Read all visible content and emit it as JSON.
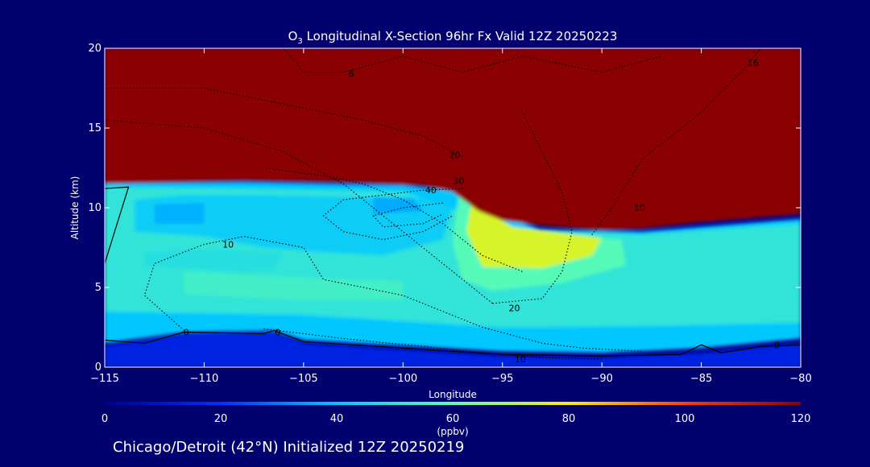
{
  "chart_data": {
    "type": "heatmap",
    "title_prefix": "O",
    "title_sub": "3",
    "title_rest": " Longitudinal X-Section 96hr  Fx Valid 12Z 20250223",
    "xlabel": "Longitude",
    "ylabel": "Altitude (km)",
    "xlim": [
      -115,
      -80
    ],
    "ylim": [
      0,
      20
    ],
    "x_ticks": [
      -115,
      -110,
      -105,
      -100,
      -95,
      -90,
      -85,
      -80
    ],
    "x_tick_labels": [
      "−115",
      "−110",
      "−105",
      "−100",
      "−95",
      "−90",
      "−85",
      "−80"
    ],
    "y_ticks": [
      0,
      5,
      10,
      15,
      20
    ],
    "y_tick_labels": [
      "0",
      "5",
      "10",
      "15",
      "20"
    ],
    "colorbar": {
      "min": 0,
      "max": 120,
      "unit": "(ppbv)",
      "ticks": [
        0,
        20,
        40,
        60,
        80,
        100,
        120
      ],
      "tick_labels": [
        "0",
        "20",
        "40",
        "60",
        "80",
        "100",
        "120"
      ],
      "colors": [
        "#00008f",
        "#0030ff",
        "#00c8ff",
        "#60ffb0",
        "#fff000",
        "#ff4000",
        "#8b0000"
      ]
    },
    "ozone_regions": [
      {
        "level": 15,
        "boundary": [
          [
            -115,
            0
          ],
          [
            -115,
            1.3
          ],
          [
            -111,
            2.1
          ],
          [
            -106.5,
            2.2
          ],
          [
            -105,
            1.5
          ],
          [
            -95,
            0.7
          ],
          [
            -90,
            0.6
          ],
          [
            -85,
            0.9
          ],
          [
            -80,
            1.5
          ],
          [
            -80,
            0
          ]
        ]
      },
      {
        "level": 40,
        "boundary": [
          [
            -115,
            1.5
          ],
          [
            -111,
            2.2
          ],
          [
            -106.5,
            2.3
          ],
          [
            -105,
            1.7
          ],
          [
            -95,
            1.0
          ],
          [
            -90,
            0.9
          ],
          [
            -85,
            1.2
          ],
          [
            -80,
            1.8
          ],
          [
            -80,
            9.3
          ],
          [
            -88,
            8.5
          ],
          [
            -93,
            8.6
          ],
          [
            -95,
            9.5
          ],
          [
            -97,
            11
          ],
          [
            -100,
            11.4
          ],
          [
            -108,
            11.6
          ],
          [
            -115,
            11.5
          ]
        ]
      },
      {
        "level": 50,
        "boundary": [
          [
            -115,
            3.5
          ],
          [
            -105,
            3.3
          ],
          [
            -95,
            2.5
          ],
          [
            -87,
            2.6
          ],
          [
            -80,
            2.8
          ],
          [
            -80,
            9
          ],
          [
            -88,
            8.3
          ],
          [
            -95,
            8.8
          ],
          [
            -100,
            11
          ],
          [
            -108,
            11.2
          ],
          [
            -115,
            11.3
          ]
        ]
      },
      {
        "level": 42,
        "boundary": [
          [
            -113.5,
            10.5
          ],
          [
            -111,
            10.8
          ],
          [
            -107,
            10.8
          ],
          [
            -103,
            10.7
          ],
          [
            -99,
            10.6
          ],
          [
            -97.5,
            10
          ],
          [
            -98,
            8
          ],
          [
            -101,
            7
          ],
          [
            -104,
            7.2
          ],
          [
            -107,
            7.5
          ],
          [
            -110,
            8.2
          ],
          [
            -113.5,
            8.5
          ]
        ]
      },
      {
        "level": 37,
        "boundary": [
          [
            -112.5,
            10.2
          ],
          [
            -110,
            10.3
          ],
          [
            -110,
            9
          ],
          [
            -112.5,
            9
          ]
        ]
      },
      {
        "level": 36,
        "boundary": [
          [
            -101.5,
            10.7
          ],
          [
            -99.5,
            10.6
          ],
          [
            -99,
            9.8
          ],
          [
            -101.5,
            9.6
          ]
        ]
      },
      {
        "level": 58,
        "boundary": [
          [
            -97.2,
            10.8
          ],
          [
            -96,
            9.8
          ],
          [
            -95.5,
            9
          ],
          [
            -94,
            8.6
          ],
          [
            -91,
            8.2
          ],
          [
            -89,
            8
          ],
          [
            -88.8,
            6.4
          ],
          [
            -92,
            5.3
          ],
          [
            -95.5,
            4.8
          ],
          [
            -97,
            5.5
          ],
          [
            -97.5,
            7.8
          ]
        ]
      },
      {
        "level": 75,
        "boundary": [
          [
            -96.5,
            10.7
          ],
          [
            -95.8,
            9.8
          ],
          [
            -94.5,
            8.8
          ],
          [
            -92,
            8.4
          ],
          [
            -90,
            8.1
          ],
          [
            -90.5,
            7
          ],
          [
            -93,
            6.2
          ],
          [
            -96,
            6.3
          ],
          [
            -96.8,
            8.5
          ]
        ]
      },
      {
        "level": 54,
        "boundary": [
          [
            -111,
            6
          ],
          [
            -105,
            5.6
          ],
          [
            -100,
            5.4
          ],
          [
            -100,
            4.2
          ],
          [
            -105,
            4.2
          ],
          [
            -111,
            4.6
          ]
        ]
      },
      {
        "level": 48,
        "boundary": [
          [
            -113,
            6.4
          ],
          [
            -108,
            6
          ],
          [
            -106.5,
            6.2
          ],
          [
            -106,
            7.2
          ],
          [
            -110,
            7.4
          ],
          [
            -113,
            7.2
          ]
        ]
      },
      {
        "level": 120,
        "boundary": [
          [
            -115,
            11.5
          ],
          [
            -108,
            11.7
          ],
          [
            -103,
            11.6
          ],
          [
            -99,
            11.4
          ],
          [
            -97.5,
            11
          ],
          [
            -96.2,
            9.8
          ],
          [
            -95,
            9.2
          ],
          [
            -93,
            8.9
          ],
          [
            -90,
            8.6
          ],
          [
            -88,
            8.7
          ],
          [
            -85,
            9.1
          ],
          [
            -80,
            9.6
          ],
          [
            -80,
            20
          ],
          [
            -115,
            20
          ]
        ]
      }
    ],
    "contours": [
      {
        "label": "0",
        "points": [
          [
            -115,
            1.7
          ],
          [
            -113,
            1.5
          ],
          [
            -111,
            2.2
          ],
          [
            -107,
            2.1
          ],
          [
            -106.5,
            2.3
          ],
          [
            -105,
            1.6
          ],
          [
            -100,
            1.2
          ],
          [
            -95,
            0.8
          ],
          [
            -90,
            0.7
          ],
          [
            -86,
            0.8
          ],
          [
            -85,
            1.4
          ],
          [
            -84,
            0.9
          ],
          [
            -82,
            1.3
          ],
          [
            -80,
            1.4
          ]
        ]
      },
      {
        "label": "0",
        "points": [
          [
            -115,
            11.2
          ],
          [
            -113.8,
            11.3
          ],
          [
            -114.5,
            8.5
          ],
          [
            -115,
            6.5
          ]
        ]
      },
      {
        "label": "10",
        "points": [
          [
            -111,
            2.3
          ],
          [
            -113,
            4.5
          ],
          [
            -112.5,
            6.5
          ],
          [
            -110,
            7.7
          ],
          [
            -108,
            8.2
          ],
          [
            -105,
            7.5
          ],
          [
            -104,
            5.5
          ],
          [
            -100,
            4.5
          ],
          [
            -98,
            3.5
          ],
          [
            -96,
            2.5
          ],
          [
            -93,
            1.5
          ],
          [
            -91,
            1.2
          ],
          [
            -88,
            1.0
          ]
        ]
      },
      {
        "label": "10",
        "points": [
          [
            -90.5,
            8.3
          ],
          [
            -89.5,
            10
          ],
          [
            -88,
            13
          ],
          [
            -85,
            16
          ],
          [
            -83,
            18.5
          ],
          [
            -82,
            20
          ]
        ]
      },
      {
        "label": "20",
        "points": [
          [
            -95.5,
            4.0
          ],
          [
            -97,
            5.5
          ],
          [
            -99,
            7.5
          ],
          [
            -101,
            9.5
          ],
          [
            -103,
            11.5
          ],
          [
            -106,
            13.5
          ],
          [
            -110,
            15
          ],
          [
            -115,
            15.5
          ]
        ]
      },
      {
        "label": "20",
        "points": [
          [
            -95.5,
            4.0
          ],
          [
            -93,
            4.3
          ],
          [
            -92,
            6
          ],
          [
            -91.5,
            8.5
          ],
          [
            -92,
            11
          ],
          [
            -93,
            13.5
          ],
          [
            -94,
            16
          ]
        ]
      },
      {
        "label": "20",
        "points": [
          [
            -97,
            13.2
          ],
          [
            -99,
            14.5
          ],
          [
            -102,
            15.5
          ],
          [
            -106,
            16.5
          ],
          [
            -110,
            17.5
          ],
          [
            -115,
            17.5
          ]
        ]
      },
      {
        "label": "30",
        "points": [
          [
            -94,
            6
          ],
          [
            -96,
            7
          ],
          [
            -98,
            9
          ],
          [
            -100,
            10.5
          ],
          [
            -102,
            11.5
          ],
          [
            -104,
            12
          ],
          [
            -107,
            12.5
          ]
        ]
      },
      {
        "label": "40",
        "points": [
          [
            -97,
            11.2
          ],
          [
            -99,
            11.1
          ],
          [
            -101,
            10.8
          ],
          [
            -103,
            10.5
          ],
          [
            -104,
            9.5
          ],
          [
            -103,
            8.5
          ],
          [
            -101,
            8
          ],
          [
            -99,
            8.5
          ],
          [
            -97.5,
            9.5
          ]
        ]
      },
      {
        "label": "40",
        "points": [
          [
            -98,
            10.3
          ],
          [
            -100,
            10.0
          ],
          [
            -101.5,
            9.5
          ],
          [
            -101,
            8.8
          ],
          [
            -99,
            9.0
          ],
          [
            -98,
            9.6
          ]
        ]
      },
      {
        "label": "6",
        "points": [
          [
            -106,
            20
          ],
          [
            -105,
            18.5
          ],
          [
            -103,
            18.5
          ],
          [
            -100,
            19.5
          ],
          [
            -97,
            18.5
          ],
          [
            -94,
            19.5
          ],
          [
            -90,
            18.5
          ],
          [
            -87,
            19.5
          ]
        ]
      },
      {
        "label": "-10",
        "points": [
          [
            -107,
            2.4
          ],
          [
            -103,
            1.8
          ],
          [
            -99,
            1.3
          ],
          [
            -96,
            0.9
          ],
          [
            -93,
            0.6
          ],
          [
            -90,
            0.5
          ]
        ]
      }
    ],
    "contour_labels": [
      {
        "text": "0",
        "x": -110.9,
        "y": 2.2
      },
      {
        "text": "0",
        "x": -106.3,
        "y": 2.2
      },
      {
        "text": "0",
        "x": -81.2,
        "y": 1.4
      },
      {
        "text": "10",
        "x": -108.8,
        "y": 7.7
      },
      {
        "text": "10",
        "x": -88.1,
        "y": 10.0
      },
      {
        "text": "20",
        "x": -94.4,
        "y": 3.7
      },
      {
        "text": "20",
        "x": -97.4,
        "y": 13.3
      },
      {
        "text": "30",
        "x": -97.2,
        "y": 11.7
      },
      {
        "text": "40",
        "x": -98.6,
        "y": 11.1
      },
      {
        "text": "6",
        "x": -102.6,
        "y": 18.4
      },
      {
        "text": "16",
        "x": -82.4,
        "y": 19.1
      },
      {
        "text": "10",
        "x": -94.1,
        "y": 0.5
      }
    ]
  },
  "footer": {
    "text": "Chicago/Detroit (42°N) Initialized 12Z 20250219"
  }
}
